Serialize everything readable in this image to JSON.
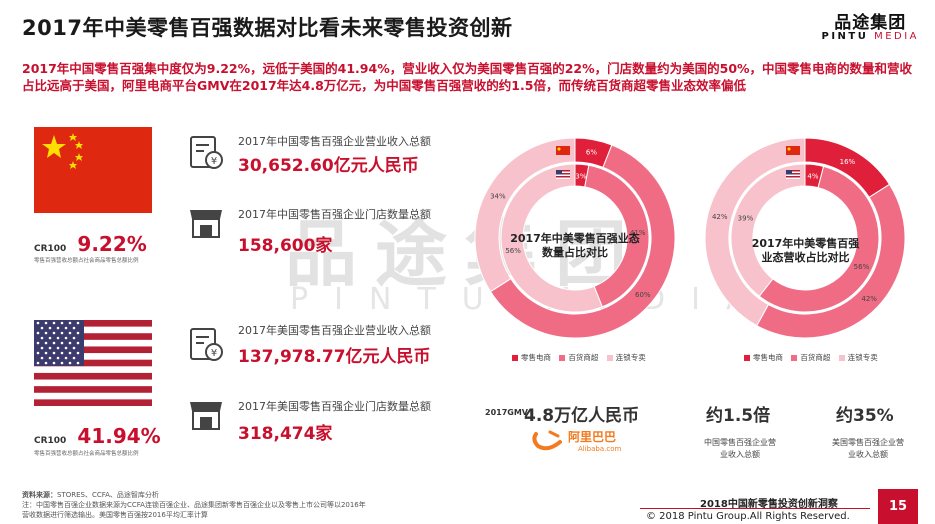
{
  "header": {
    "title": "2017年中美零售百强数据对比看未来零售投资创新",
    "logo_cn": "品途集团",
    "logo_en_a": "PINTU",
    "logo_en_b": "MEDIA"
  },
  "summary": "2017年中国零售百强集中度仅为9.22%，远低于美国的41.94%，营业收入仅为美国零售百强的22%，门店数量约为美国的50%，中国零售电商的数量和营收占比远高于美国，阿里电商平台GMV在2017年达4.8万亿元，为中国零售百强营收的约1.5倍，而传统百货商超零售业态效率偏低",
  "china": {
    "cr_label": "CR100",
    "cr_value": "9.22%",
    "cr_note": "零售百强营收总额占社会商品零售总额比例",
    "revenue_label": "2017年中国零售百强企业营业收入总额",
    "revenue_value": "30,652.60亿元人民币",
    "stores_label": "2017年中国零售百强企业门店数量总额",
    "stores_value": "158,600家"
  },
  "usa": {
    "cr_label": "CR100",
    "cr_value": "41.94%",
    "cr_note": "零售百强营收总额占社会商品零售总额比例",
    "revenue_label": "2017年美国零售百强企业营业收入总额",
    "revenue_value": "137,978.77亿元人民币",
    "stores_label": "2017年美国零售百强企业门店数量总额",
    "stores_value": "318,474家"
  },
  "colors": {
    "ecommerce": "#e0203a",
    "dept_store": "#f06c85",
    "chain": "#f7c2cc",
    "accent": "#c8102e"
  },
  "legend": [
    "零售电商",
    "百货商超",
    "连锁专卖"
  ],
  "chart_data": [
    {
      "type": "pie",
      "title": "2017年中美零售百强业态数量占比对比",
      "categories": [
        "零售电商",
        "百货商超",
        "连锁专卖"
      ],
      "series": [
        {
          "name": "China",
          "values": [
            6,
            60,
            34
          ]
        },
        {
          "name": "USA",
          "values": [
            3,
            41,
            56
          ]
        }
      ]
    },
    {
      "type": "pie",
      "title": "2017年中美零售百强业态营收占比对比",
      "categories": [
        "零售电商",
        "百货商超",
        "连锁专卖"
      ],
      "series": [
        {
          "name": "China",
          "values": [
            16,
            42,
            42
          ]
        },
        {
          "name": "USA",
          "values": [
            4,
            56,
            39
          ]
        }
      ]
    }
  ],
  "alibaba": {
    "gmv_label": "2017GMV",
    "gmv_value": "4.8万亿人民币",
    "logo_cn": "阿里巴巴",
    "logo_en": "Alibaba.com"
  },
  "ratios": [
    {
      "value": "约1.5倍",
      "caption_1": "中国零售百强企业营",
      "caption_2": "业收入总额"
    },
    {
      "value": "约35%",
      "caption_1": "美国零售百强企业营",
      "caption_2": "业收入总额"
    }
  ],
  "watermark": {
    "cn": "品途集团",
    "en": "PINTU MEDIA"
  },
  "source": {
    "label": "资料来源：",
    "text": "STORES、CCFA、品途智库分析",
    "note": "注：中国零售百强企业数据来源为CCFA连锁百强企业、品途集团新零售百强企业以及零售上市公司等以2016年营收数据进行筛选输出。美国零售百强按2016平均汇率计算"
  },
  "footer": {
    "report": "2018中国新零售投资创新洞察",
    "copyright": "© 2018 Pintu Group.All Rights Reserved.",
    "page": "15"
  }
}
